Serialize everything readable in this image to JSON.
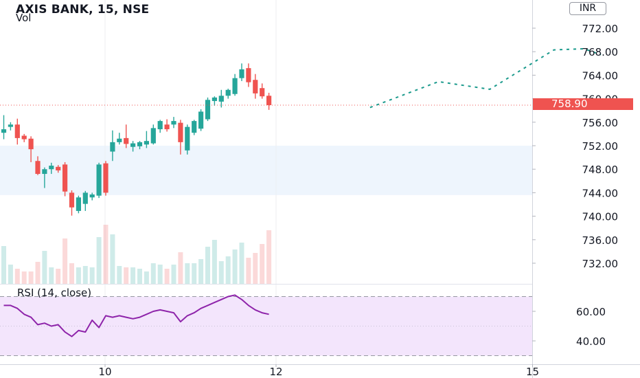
{
  "header": {
    "symbol_line": "AXIS BANK, 15, NSE",
    "volume_label": "Vol",
    "rsi_label": "RSI (14, close)",
    "currency": "INR",
    "last_price": "758.90"
  },
  "colors": {
    "up": "#26a69a",
    "down": "#ef5350",
    "projection": "#1a9a8c",
    "rsi_line": "#8e24aa",
    "rsi_band": "#f3e5fc",
    "zone": "#eef5fd"
  },
  "chart_data": [
    {
      "type": "candlestick",
      "title": "AXIS BANK, 15, NSE",
      "x_ticks": [
        "10",
        "12",
        "15"
      ],
      "y_ticks": [
        "772.00",
        "768.00",
        "764.00",
        "760.00",
        "756.00",
        "752.00",
        "748.00",
        "744.00",
        "740.00",
        "736.00",
        "732.00"
      ],
      "ylim": [
        728,
        776
      ],
      "last_price": 758.9,
      "highlight_zone": [
        743.6,
        752.0
      ],
      "candles": [
        {
          "o": 754.2,
          "h": 757.2,
          "l": 753.1,
          "c": 754.8
        },
        {
          "o": 755.2,
          "h": 756.0,
          "l": 754.6,
          "c": 755.6
        },
        {
          "o": 755.6,
          "h": 756.6,
          "l": 752.2,
          "c": 753.3
        },
        {
          "o": 753.7,
          "h": 754.0,
          "l": 752.6,
          "c": 753.1
        },
        {
          "o": 753.2,
          "h": 753.6,
          "l": 749.2,
          "c": 751.4
        },
        {
          "o": 749.4,
          "h": 750.2,
          "l": 747.0,
          "c": 747.2
        },
        {
          "o": 747.2,
          "h": 748.3,
          "l": 744.8,
          "c": 748.0
        },
        {
          "o": 748.0,
          "h": 749.1,
          "l": 747.2,
          "c": 748.6
        },
        {
          "o": 748.4,
          "h": 748.7,
          "l": 747.4,
          "c": 747.8
        },
        {
          "o": 748.8,
          "h": 749.2,
          "l": 743.4,
          "c": 744.2
        },
        {
          "o": 744.0,
          "h": 744.4,
          "l": 740.1,
          "c": 741.5
        },
        {
          "o": 740.9,
          "h": 743.5,
          "l": 740.5,
          "c": 743.2
        },
        {
          "o": 742.1,
          "h": 744.3,
          "l": 740.9,
          "c": 744.0
        },
        {
          "o": 743.2,
          "h": 744.0,
          "l": 742.7,
          "c": 743.7
        },
        {
          "o": 743.5,
          "h": 749.1,
          "l": 743.1,
          "c": 748.8
        },
        {
          "o": 749.0,
          "h": 749.4,
          "l": 743.5,
          "c": 744.0
        },
        {
          "o": 751.0,
          "h": 754.6,
          "l": 749.4,
          "c": 752.6
        },
        {
          "o": 752.6,
          "h": 754.2,
          "l": 752.2,
          "c": 753.2
        },
        {
          "o": 753.3,
          "h": 755.6,
          "l": 751.6,
          "c": 752.3
        },
        {
          "o": 751.8,
          "h": 752.8,
          "l": 751.0,
          "c": 752.4
        },
        {
          "o": 751.9,
          "h": 752.8,
          "l": 751.4,
          "c": 752.6
        },
        {
          "o": 752.2,
          "h": 754.5,
          "l": 751.6,
          "c": 752.8
        },
        {
          "o": 752.4,
          "h": 755.6,
          "l": 752.2,
          "c": 755.0
        },
        {
          "o": 754.8,
          "h": 756.4,
          "l": 754.2,
          "c": 756.2
        },
        {
          "o": 755.6,
          "h": 756.5,
          "l": 754.4,
          "c": 754.8
        },
        {
          "o": 755.6,
          "h": 756.9,
          "l": 755.0,
          "c": 756.2
        },
        {
          "o": 755.9,
          "h": 756.4,
          "l": 750.5,
          "c": 752.6
        },
        {
          "o": 751.2,
          "h": 755.6,
          "l": 750.5,
          "c": 755.2
        },
        {
          "o": 754.2,
          "h": 756.4,
          "l": 753.8,
          "c": 756.2
        },
        {
          "o": 754.9,
          "h": 758.2,
          "l": 754.5,
          "c": 757.8
        },
        {
          "o": 756.5,
          "h": 760.2,
          "l": 756.2,
          "c": 759.8
        },
        {
          "o": 759.6,
          "h": 760.4,
          "l": 758.8,
          "c": 760.2
        },
        {
          "o": 759.5,
          "h": 761.5,
          "l": 758.5,
          "c": 760.5
        },
        {
          "o": 760.5,
          "h": 761.7,
          "l": 760.0,
          "c": 761.5
        },
        {
          "o": 760.8,
          "h": 764.2,
          "l": 760.5,
          "c": 763.5
        },
        {
          "o": 763.5,
          "h": 766.0,
          "l": 763.0,
          "c": 765.0
        },
        {
          "o": 765.2,
          "h": 766.0,
          "l": 762.0,
          "c": 762.8
        },
        {
          "o": 763.2,
          "h": 764.2,
          "l": 760.0,
          "c": 760.9
        },
        {
          "o": 761.8,
          "h": 762.6,
          "l": 760.0,
          "c": 760.4
        },
        {
          "o": 760.5,
          "h": 761.0,
          "l": 758.1,
          "c": 758.9
        }
      ],
      "volume": [
        0.55,
        0.28,
        0.22,
        0.18,
        0.18,
        0.32,
        0.48,
        0.24,
        0.22,
        0.66,
        0.3,
        0.24,
        0.26,
        0.24,
        0.68,
        0.86,
        0.72,
        0.26,
        0.24,
        0.24,
        0.22,
        0.18,
        0.3,
        0.28,
        0.22,
        0.28,
        0.46,
        0.3,
        0.3,
        0.36,
        0.54,
        0.64,
        0.33,
        0.4,
        0.5,
        0.6,
        0.38,
        0.45,
        0.58,
        0.78
      ],
      "projection": [
        {
          "x": 13.1,
          "y": 758.5
        },
        {
          "x": 13.9,
          "y": 762.9
        },
        {
          "x": 14.5,
          "y": 761.6
        },
        {
          "x": 15.25,
          "y": 768.3
        },
        {
          "x": 15.6,
          "y": 768.5
        },
        {
          "x": 15.8,
          "y": 767.5
        }
      ]
    },
    {
      "type": "line",
      "title": "RSI (14, close)",
      "y_ticks": [
        "60.00",
        "40.00"
      ],
      "ylim": [
        28,
        72
      ],
      "band": [
        30,
        70
      ],
      "values": [
        64,
        64,
        62,
        58,
        56,
        51,
        52,
        50,
        51,
        46,
        43,
        47,
        46,
        54,
        49,
        57,
        56,
        57,
        56,
        55,
        56,
        58,
        60,
        61,
        60,
        59,
        53,
        57,
        59,
        62,
        64,
        66,
        68,
        70,
        71,
        68,
        64,
        61,
        59,
        58
      ]
    }
  ]
}
